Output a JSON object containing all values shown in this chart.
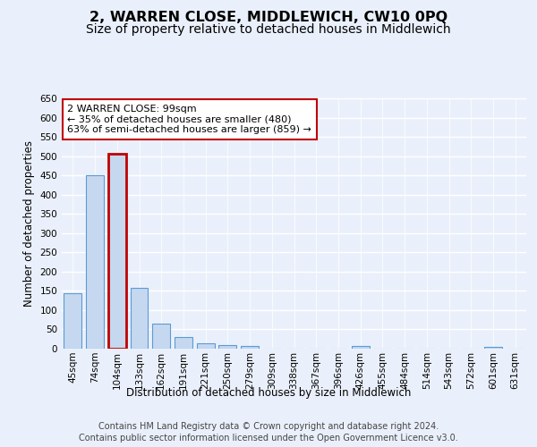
{
  "title": "2, WARREN CLOSE, MIDDLEWICH, CW10 0PQ",
  "subtitle": "Size of property relative to detached houses in Middlewich",
  "xlabel": "Distribution of detached houses by size in Middlewich",
  "ylabel": "Number of detached properties",
  "categories": [
    "45sqm",
    "74sqm",
    "104sqm",
    "133sqm",
    "162sqm",
    "191sqm",
    "221sqm",
    "250sqm",
    "279sqm",
    "309sqm",
    "338sqm",
    "367sqm",
    "396sqm",
    "426sqm",
    "455sqm",
    "484sqm",
    "514sqm",
    "543sqm",
    "572sqm",
    "601sqm",
    "631sqm"
  ],
  "values": [
    145,
    450,
    505,
    157,
    65,
    30,
    14,
    9,
    7,
    0,
    0,
    0,
    0,
    7,
    0,
    0,
    0,
    0,
    0,
    5,
    0
  ],
  "bar_color": "#c5d8f0",
  "bar_edge_color": "#5b9bd5",
  "highlight_bar_index": 2,
  "highlight_bar_edge_color": "#c00000",
  "annotation_text": "2 WARREN CLOSE: 99sqm\n← 35% of detached houses are smaller (480)\n63% of semi-detached houses are larger (859) →",
  "annotation_box_edge_color": "#c00000",
  "ylim": [
    0,
    650
  ],
  "yticks": [
    0,
    50,
    100,
    150,
    200,
    250,
    300,
    350,
    400,
    450,
    500,
    550,
    600,
    650
  ],
  "footer_line1": "Contains HM Land Registry data © Crown copyright and database right 2024.",
  "footer_line2": "Contains public sector information licensed under the Open Government Licence v3.0.",
  "bg_color": "#eaf0fb",
  "plot_bg_color": "#eaf0fb",
  "grid_color": "#ffffff",
  "title_fontsize": 11.5,
  "subtitle_fontsize": 10,
  "axis_label_fontsize": 8.5,
  "tick_fontsize": 7.5,
  "footer_fontsize": 7
}
